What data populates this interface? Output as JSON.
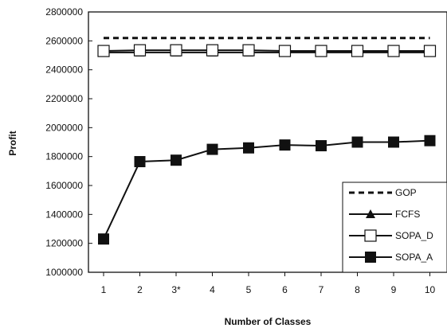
{
  "chart_data": {
    "type": "line",
    "categories": [
      "1",
      "2",
      "3*",
      "4",
      "5",
      "6",
      "7",
      "8",
      "9",
      "10"
    ],
    "xlabel": "Number of Classes",
    "ylabel": "Profit",
    "ylim": [
      1000000,
      2800000
    ],
    "yticks": [
      1000000,
      1200000,
      1400000,
      1600000,
      1800000,
      2000000,
      2200000,
      2400000,
      2600000,
      2800000
    ],
    "grid": false,
    "legend_position": "bottom-right",
    "series": [
      {
        "name": "GOP",
        "style": "dashed",
        "marker": "none",
        "values": [
          2620000,
          2620000,
          2620000,
          2620000,
          2620000,
          2620000,
          2620000,
          2620000,
          2620000,
          2620000
        ]
      },
      {
        "name": "FCFS",
        "style": "solid",
        "marker": "triangle",
        "values": [
          2520000,
          2520000,
          2520000,
          2520000,
          2520000,
          2520000,
          2520000,
          2520000,
          2520000,
          2520000
        ]
      },
      {
        "name": "SOPA_D",
        "style": "solid",
        "marker": "open-square",
        "values": [
          2530000,
          2535000,
          2535000,
          2535000,
          2535000,
          2530000,
          2530000,
          2530000,
          2530000,
          2530000
        ]
      },
      {
        "name": "SOPA_A",
        "style": "solid",
        "marker": "filled-square",
        "values": [
          1230000,
          1765000,
          1775000,
          1850000,
          1860000,
          1880000,
          1875000,
          1900000,
          1900000,
          1910000
        ]
      }
    ]
  }
}
